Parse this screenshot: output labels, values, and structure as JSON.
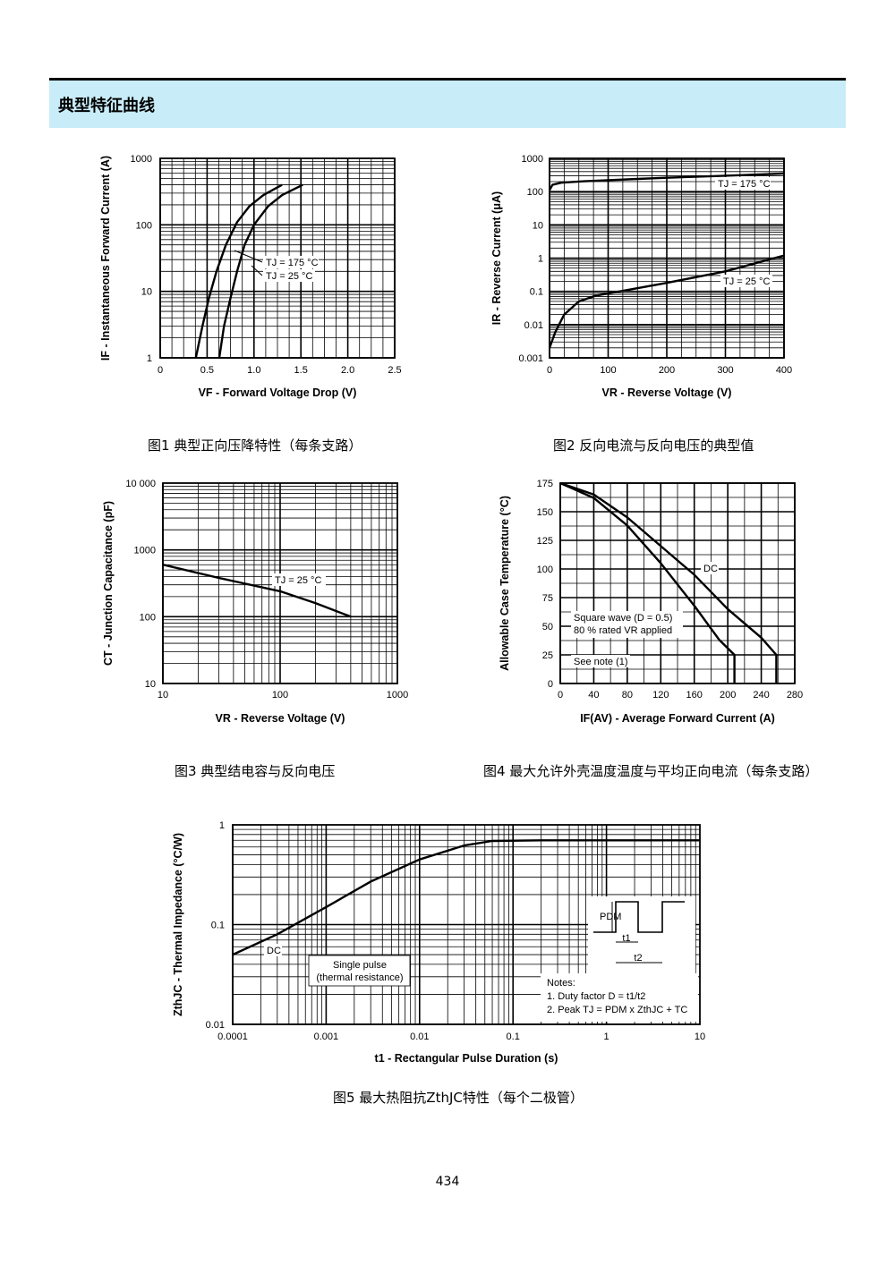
{
  "page": {
    "section_title": "典型特征曲线",
    "page_number": "434"
  },
  "chart_data": [
    {
      "id": "fig1",
      "type": "line",
      "caption": "图1  典型正向压降特性（每条支路）",
      "xlabel": "VF - Forward Voltage Drop (V)",
      "ylabel": "IF - Instantaneous Forward Current (A)",
      "xscale": "linear",
      "yscale": "log",
      "xlim": [
        0,
        2.5
      ],
      "ylim": [
        1,
        1000
      ],
      "xticks": [
        "0",
        "0.5",
        "1.0",
        "1.5",
        "2.0",
        "2.5"
      ],
      "yticks": [
        "1",
        "10",
        "100",
        "1000"
      ],
      "grid": true,
      "series": [
        {
          "name": "TJ = 175 °C",
          "x": [
            0.38,
            0.45,
            0.52,
            0.6,
            0.7,
            0.82,
            0.95,
            1.1,
            1.3
          ],
          "y": [
            1,
            3,
            8,
            20,
            50,
            110,
            190,
            280,
            400
          ]
        },
        {
          "name": "TJ = 25 °C",
          "x": [
            0.63,
            0.68,
            0.75,
            0.82,
            0.9,
            1.0,
            1.15,
            1.3,
            1.52
          ],
          "y": [
            1,
            3,
            8,
            20,
            50,
            100,
            190,
            280,
            400
          ]
        }
      ],
      "annotations": [
        "TJ = 175 °C",
        "TJ = 25 °C"
      ]
    },
    {
      "id": "fig2",
      "type": "line",
      "caption": "图2  反向电流与反向电压的典型值",
      "xlabel": "VR - Reverse Voltage (V)",
      "ylabel": "IR - Reverse Current (μA)",
      "xscale": "linear",
      "yscale": "log",
      "xlim": [
        0,
        400
      ],
      "ylim": [
        0.001,
        1000
      ],
      "xticks": [
        "0",
        "100",
        "200",
        "300",
        "400"
      ],
      "yticks": [
        "0.001",
        "0.01",
        "0.1",
        "1",
        "10",
        "100",
        "1000"
      ],
      "grid": true,
      "series": [
        {
          "name": "TJ = 175 °C",
          "x": [
            0,
            5,
            20,
            60,
            100,
            150,
            200,
            300,
            400
          ],
          "y": [
            110,
            160,
            185,
            205,
            220,
            240,
            260,
            300,
            350
          ]
        },
        {
          "name": "TJ = 25 °C",
          "x": [
            0,
            10,
            25,
            50,
            80,
            120,
            200,
            300,
            400
          ],
          "y": [
            0.002,
            0.006,
            0.02,
            0.05,
            0.075,
            0.1,
            0.18,
            0.4,
            1.2
          ]
        }
      ],
      "annotations": [
        "TJ = 175 °C",
        "TJ = 25 °C"
      ]
    },
    {
      "id": "fig3",
      "type": "line",
      "caption": "图3  典型结电容与反向电压",
      "xlabel": "VR - Reverse Voltage (V)",
      "ylabel": "CT - Junction Capacitance (pF)",
      "xscale": "log",
      "yscale": "log",
      "xlim": [
        10,
        1000
      ],
      "ylim": [
        10,
        10000
      ],
      "xticks": [
        "10",
        "100",
        "1000"
      ],
      "yticks": [
        "10",
        "100",
        "1000",
        "10 000"
      ],
      "grid": true,
      "series": [
        {
          "name": "TJ = 25 °C",
          "x": [
            10,
            30,
            100,
            200,
            400
          ],
          "y": [
            600,
            380,
            240,
            160,
            100
          ]
        }
      ],
      "annotations": [
        "TJ = 25 °C"
      ]
    },
    {
      "id": "fig4",
      "type": "line",
      "caption": "图4  最大允许外壳温度温度与平均正向电流（每条支路）",
      "xlabel": "IF(AV) - Average Forward Current (A)",
      "ylabel": "Allowable Case Temperature (°C)",
      "xscale": "linear",
      "yscale": "linear",
      "xlim": [
        0,
        280
      ],
      "ylim": [
        0,
        175
      ],
      "xticks": [
        "0",
        "40",
        "80",
        "120",
        "160",
        "200",
        "240",
        "280"
      ],
      "yticks": [
        "0",
        "25",
        "50",
        "75",
        "100",
        "125",
        "150",
        "175"
      ],
      "grid": true,
      "series": [
        {
          "name": "Square wave (D = 0.5)",
          "x": [
            0,
            40,
            80,
            120,
            160,
            190,
            208,
            208
          ],
          "y": [
            175,
            162,
            138,
            105,
            68,
            38,
            25,
            0
          ]
        },
        {
          "name": "DC",
          "x": [
            0,
            40,
            80,
            120,
            160,
            200,
            240,
            258,
            258
          ],
          "y": [
            175,
            165,
            145,
            120,
            95,
            65,
            40,
            25,
            0
          ]
        }
      ],
      "annotations": [
        "DC",
        "Square wave (D = 0.5)",
        "80 % rated VR applied",
        "See note (1)"
      ]
    },
    {
      "id": "fig5",
      "type": "line",
      "caption": "图5  最大热阻抗ZthJC特性（每个二极管）",
      "xlabel": "t1 - Rectangular Pulse Duration (s)",
      "ylabel": "ZthJC - Thermal Impedance (°C/W)",
      "xscale": "log",
      "yscale": "log",
      "xlim": [
        0.0001,
        10
      ],
      "ylim": [
        0.01,
        1
      ],
      "xticks": [
        "0.0001",
        "0.001",
        "0.01",
        "0.1",
        "1",
        "10"
      ],
      "yticks": [
        "0.01",
        "0.1",
        "1"
      ],
      "grid": true,
      "series": [
        {
          "name": "Single pulse (thermal resistance)",
          "x": [
            0.0001,
            0.0003,
            0.001,
            0.003,
            0.01,
            0.03,
            0.06,
            0.2,
            1,
            10
          ],
          "y": [
            0.05,
            0.08,
            0.15,
            0.27,
            0.45,
            0.62,
            0.69,
            0.7,
            0.7,
            0.7
          ]
        }
      ],
      "annotations": [
        "DC",
        "Single pulse",
        "(thermal resistance)",
        "Notes:",
        "1. Duty factor D = t1/t2",
        "2. Peak TJ = PDM x ZthJC + TC",
        "PDM",
        "t1",
        "t2"
      ]
    }
  ]
}
